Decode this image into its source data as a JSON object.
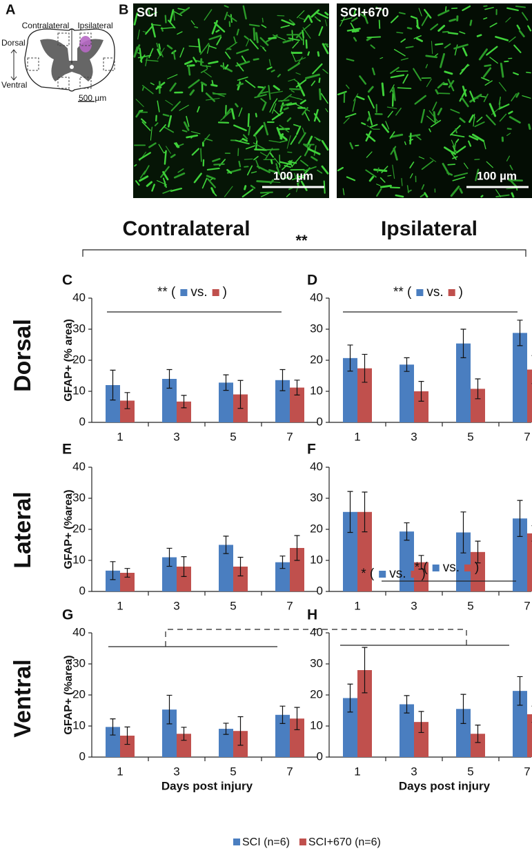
{
  "panel_a": {
    "letter": "A",
    "contralateral": "Contralateral",
    "ipsilateral": "Ipsilateral",
    "dorsal": "Dorsal",
    "ventral": "Ventral",
    "scale": "500 µm"
  },
  "panel_b": {
    "letter": "B",
    "images": [
      {
        "label": "SCI",
        "scale": "100 µm"
      },
      {
        "label": "SCI+670",
        "scale": "100 µm"
      }
    ]
  },
  "header": {
    "left": "Contralateral",
    "right": "Ipsilateral",
    "significance": "**"
  },
  "rows": [
    "Dorsal",
    "Lateral",
    "Ventral"
  ],
  "cross_annotation": {
    "parts": [
      "* (",
      "vs.",
      ")"
    ]
  },
  "chart_data": [
    {
      "type": "bar",
      "panel": "C",
      "ylabel": "GFAP+ (% area)",
      "categories": [
        "1",
        "3",
        "5",
        "7"
      ],
      "ylim": [
        0,
        40
      ],
      "yticks": [
        0,
        10,
        20,
        30,
        40
      ],
      "series": [
        {
          "name": "SCI (n=6)",
          "color": "#4a7ec0",
          "values": [
            12,
            14,
            12.8,
            13.6
          ],
          "errors": [
            4.8,
            3,
            2.5,
            3.4
          ]
        },
        {
          "name": "SCI+670 (n=6)",
          "color": "#c0504d",
          "values": [
            7,
            6.7,
            9,
            11.2
          ],
          "errors": [
            2.6,
            2,
            4.5,
            2.4
          ]
        }
      ],
      "annotations": [
        {
          "parts": [
            "** (",
            "vs.",
            ")"
          ]
        }
      ]
    },
    {
      "type": "bar",
      "panel": "D",
      "categories": [
        "1",
        "3",
        "5",
        "7"
      ],
      "ylim": [
        0,
        40
      ],
      "yticks": [
        0,
        10,
        20,
        30,
        40
      ],
      "series": [
        {
          "name": "SCI (n=6)",
          "color": "#4a7ec0",
          "values": [
            20.7,
            18.6,
            25.4,
            28.8
          ],
          "errors": [
            4.2,
            2.2,
            4.6,
            4.1
          ]
        },
        {
          "name": "SCI+670 (n=6)",
          "color": "#c0504d",
          "values": [
            17.4,
            10,
            10.8,
            17
          ],
          "errors": [
            4.5,
            3.2,
            3.2,
            4.5
          ]
        }
      ],
      "annotations": [
        {
          "parts": [
            "** (",
            "vs.",
            ")"
          ]
        }
      ]
    },
    {
      "type": "bar",
      "panel": "E",
      "ylabel": "GFAP+ (%area)",
      "categories": [
        "1",
        "3",
        "5",
        "7"
      ],
      "ylim": [
        0,
        40
      ],
      "yticks": [
        0,
        10,
        20,
        30,
        40
      ],
      "series": [
        {
          "name": "SCI (n=6)",
          "color": "#4a7ec0",
          "values": [
            6.7,
            11,
            15,
            9.4
          ],
          "errors": [
            2.9,
            2.9,
            2.8,
            2
          ]
        },
        {
          "name": "SCI+670 (n=6)",
          "color": "#c0504d",
          "values": [
            6,
            8,
            8,
            14
          ],
          "errors": [
            1.4,
            3.2,
            3,
            4
          ]
        }
      ]
    },
    {
      "type": "bar",
      "panel": "F",
      "categories": [
        "1",
        "3",
        "5",
        "7"
      ],
      "ylim": [
        0,
        40
      ],
      "yticks": [
        0,
        10,
        20,
        30,
        40
      ],
      "series": [
        {
          "name": "SCI (n=6)",
          "color": "#4a7ec0",
          "values": [
            25.6,
            19.3,
            19,
            23.5
          ],
          "errors": [
            6.6,
            2.8,
            6.6,
            5.8
          ]
        },
        {
          "name": "SCI+670 (n=6)",
          "color": "#c0504d",
          "values": [
            25.6,
            9.4,
            12.7,
            18.7
          ],
          "errors": [
            6.4,
            2.2,
            3.5,
            2.5
          ]
        }
      ]
    },
    {
      "type": "bar",
      "panel": "G",
      "ylabel": "GFAP+ (%area)",
      "xlabel": "Days post injury",
      "categories": [
        "1",
        "3",
        "5",
        "7"
      ],
      "ylim": [
        0,
        40
      ],
      "yticks": [
        0,
        10,
        20,
        30,
        40
      ],
      "series": [
        {
          "name": "SCI (n=6)",
          "color": "#4a7ec0",
          "values": [
            9.7,
            15.3,
            9.1,
            13.6
          ],
          "errors": [
            2.6,
            4.6,
            1.8,
            2.8
          ]
        },
        {
          "name": "SCI+670 (n=6)",
          "color": "#c0504d",
          "values": [
            6.9,
            7.5,
            8.4,
            12.4
          ],
          "errors": [
            2.8,
            2.1,
            4.6,
            3.6
          ]
        }
      ]
    },
    {
      "type": "bar",
      "panel": "H",
      "xlabel": "Days post injury",
      "categories": [
        "1",
        "3",
        "5",
        "7"
      ],
      "ylim": [
        0,
        40
      ],
      "yticks": [
        0,
        10,
        20,
        30,
        40
      ],
      "series": [
        {
          "name": "SCI (n=6)",
          "color": "#4a7ec0",
          "values": [
            19,
            17,
            15.5,
            21.3
          ],
          "errors": [
            4.5,
            2.8,
            4.7,
            4.6
          ]
        },
        {
          "name": "SCI+670 (n=6)",
          "color": "#c0504d",
          "values": [
            28,
            11.3,
            7.5,
            13.8
          ],
          "errors": [
            7.3,
            3.4,
            2.8,
            2.6
          ]
        }
      ],
      "annotations": [
        {
          "parts": [
            "* (",
            "vs.",
            ")"
          ]
        }
      ]
    }
  ]
}
